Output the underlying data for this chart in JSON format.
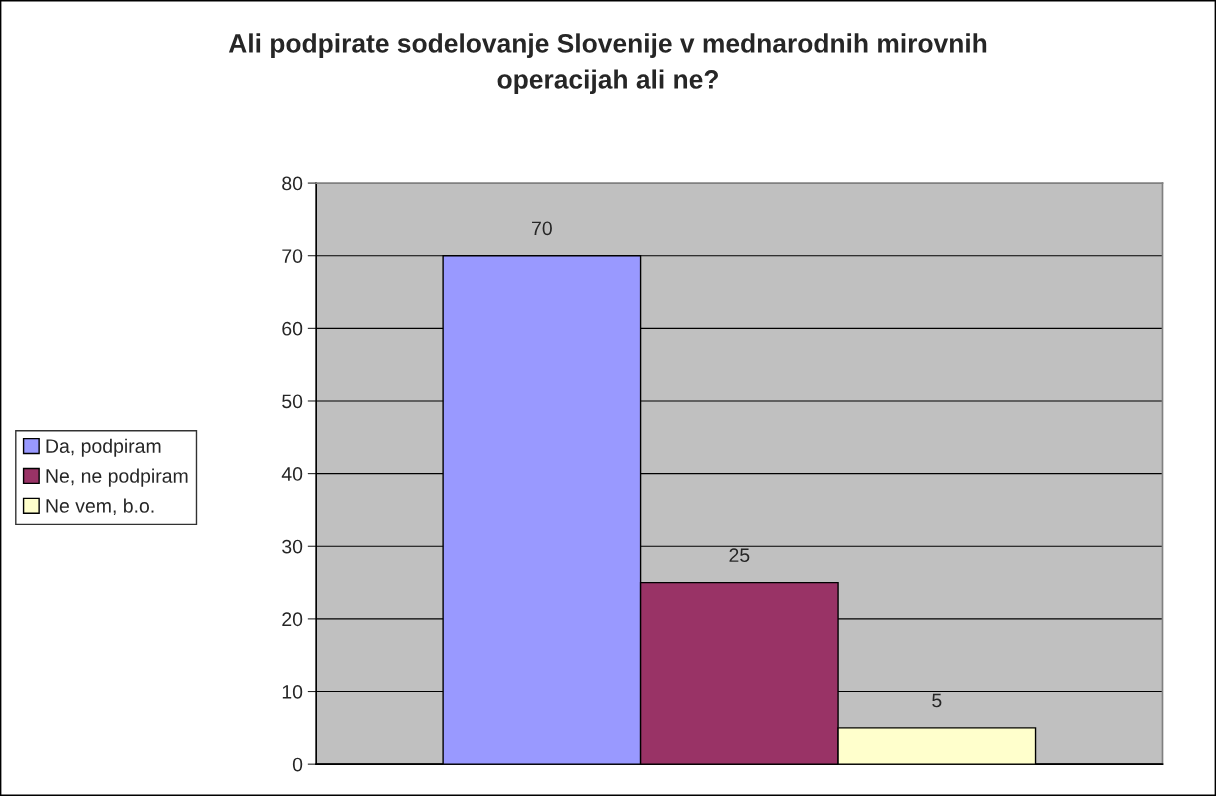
{
  "chart_data": {
    "type": "bar",
    "title": "Ali podpirate sodelovanje Slovenije v mednarodnih mirovnih\noperacijah ali ne?",
    "categories": [
      null
    ],
    "series": [
      {
        "name": "Da, podpiram",
        "color": "#9999ff",
        "values": [
          70
        ]
      },
      {
        "name": "Ne, ne podpiram",
        "color": "#993366",
        "values": [
          25
        ]
      },
      {
        "name": "Ne vem, b.o.",
        "color": "#ffffcc",
        "values": [
          5
        ]
      }
    ],
    "ylim": [
      0,
      80
    ],
    "yticks": [
      0,
      10,
      20,
      30,
      40,
      50,
      60,
      70,
      80
    ],
    "grid": "y",
    "legend": "left",
    "data_labels": true
  }
}
